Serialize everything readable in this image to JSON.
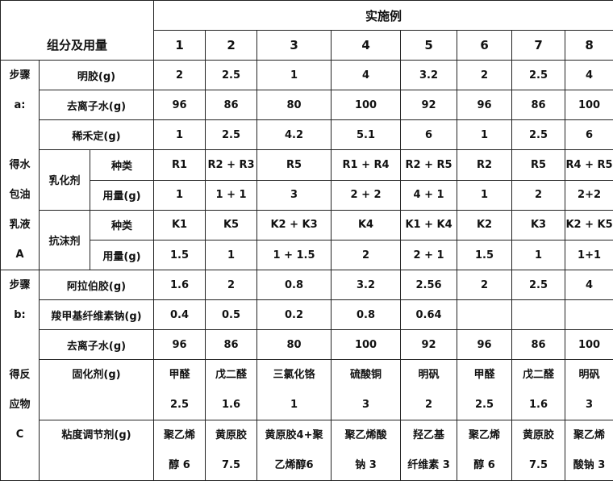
{
  "header": {
    "group_label": "组分及用量",
    "examples_label": "实施例",
    "examples": [
      "1",
      "2",
      "3",
      "4",
      "5",
      "6",
      "7",
      "8"
    ]
  },
  "step_a": {
    "side_lines": [
      "步骤",
      "a:",
      "",
      "得水",
      "包油",
      "乳液",
      "A"
    ],
    "rows": [
      {
        "label": "明胶(g)",
        "values": [
          "2",
          "2.5",
          "1",
          "4",
          "3.2",
          "2",
          "2.5",
          "4"
        ]
      },
      {
        "label": "去离子水(g)",
        "values": [
          "96",
          "86",
          "80",
          "100",
          "92",
          "96",
          "86",
          "100"
        ]
      },
      {
        "label": "稀禾定(g)",
        "values": [
          "1",
          "2.5",
          "4.2",
          "5.1",
          "6",
          "1",
          "2.5",
          "6"
        ]
      }
    ],
    "emulsifier": {
      "label": "乳化剂",
      "type_label": "种类",
      "amount_label": "用量(g)",
      "types": [
        "R1",
        "R2 + R3",
        "R5",
        "R1 + R4",
        "R2 +  R5",
        "R2",
        "R5",
        "R4 + R5"
      ],
      "amounts": [
        "1",
        "1 + 1",
        "3",
        "2 + 2",
        "4  +  1",
        "1",
        "2",
        "2+2"
      ]
    },
    "antifoam": {
      "label": "抗沫剂",
      "type_label": "种类",
      "amount_label": "用量(g)",
      "types": [
        "K1",
        "K5",
        "K2  +  K3",
        "K4",
        "K1 +  K4",
        "K2",
        "K3",
        "K2 + K5"
      ],
      "amounts": [
        "1.5",
        "1",
        "1    +    1.5",
        "2",
        "2  +  1",
        "1.5",
        "1",
        "1+1"
      ]
    }
  },
  "step_b": {
    "side_lines": [
      "步骤",
      "b:",
      "",
      "得反",
      "应物",
      "C"
    ],
    "rows": [
      {
        "label": "阿拉伯胶(g)",
        "values": [
          "1.6",
          "2",
          "0.8",
          "3.2",
          "2.56",
          "2",
          "2.5",
          "4"
        ]
      },
      {
        "label": "羧甲基纤维素钠(g)",
        "values": [
          "0.4",
          "0.5",
          "0.2",
          "0.8",
          "0.64",
          "",
          "",
          ""
        ]
      },
      {
        "label": "去离子水(g)",
        "values": [
          "96",
          "86",
          "80",
          "100",
          "92",
          "96",
          "86",
          "100"
        ]
      }
    ],
    "curing": {
      "label": "固化剂(g)",
      "values": [
        [
          "甲醛",
          "2.5"
        ],
        [
          "戊二醛",
          "1.6"
        ],
        [
          "三氯化铬",
          "1"
        ],
        [
          "硫酸铜",
          "3"
        ],
        [
          "明矾",
          "2"
        ],
        [
          "甲醛",
          "2.5"
        ],
        [
          "戊二醛",
          "1.6"
        ],
        [
          "明矾",
          "3"
        ]
      ]
    },
    "viscosity": {
      "label": "粘度调节剂(g)",
      "values": [
        [
          "聚乙烯",
          "醇  6"
        ],
        [
          "黄原胶",
          "7.5"
        ],
        [
          "黄原胶4+聚",
          "乙烯醇6"
        ],
        [
          "聚乙烯酸",
          "钠 3"
        ],
        [
          "羟乙基",
          "纤维素  3"
        ],
        [
          "聚乙烯",
          "醇  6"
        ],
        [
          "黄原胶",
          "7.5"
        ],
        [
          "聚乙烯",
          "酸钠 3"
        ]
      ]
    }
  }
}
